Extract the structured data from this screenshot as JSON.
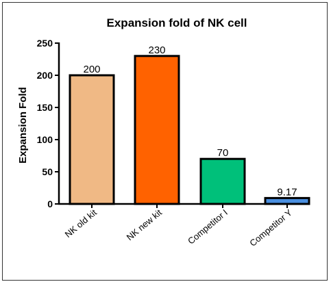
{
  "chart_data": {
    "type": "bar",
    "title": "Expansion fold of NK cell",
    "xlabel": "",
    "ylabel": "Expansion Fold",
    "ylim": [
      0,
      250
    ],
    "yticks": [
      0,
      50,
      100,
      150,
      200,
      250
    ],
    "categories": [
      "NK old kit",
      "NK new kit",
      "Competitor I",
      "Competitor Y"
    ],
    "values": [
      200,
      230,
      70,
      9.17
    ],
    "data_labels": [
      "200",
      "230",
      "70",
      "9.17"
    ],
    "colors": [
      "#F0B985",
      "#FF6200",
      "#00C07A",
      "#4A8FE0"
    ],
    "grid": false,
    "legend": "none"
  }
}
